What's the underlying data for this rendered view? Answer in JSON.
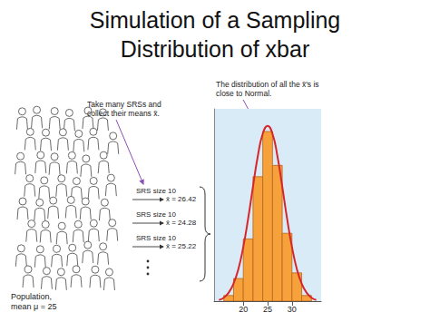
{
  "chart_data": {
    "type": "histogram",
    "title": "Simulation of a Sampling Distribution of xbar",
    "annotations": {
      "note": "Take many SRSs and collect their means x̄.",
      "curve_note": "The distribution of all the x̄'s is close to Normal.",
      "samples": [
        {
          "label": "SRS size 10",
          "mean": "x̄ = 26.42"
        },
        {
          "label": "SRS size 10",
          "mean": "x̄ = 24.28"
        },
        {
          "label": "SRS size 10",
          "mean": "x̄ = 25.22"
        }
      ],
      "population": "Population, mean μ = 25"
    },
    "bins": [
      16,
      18,
      20,
      22,
      24,
      26,
      28,
      30,
      32,
      34
    ],
    "counts": [
      1,
      4,
      11,
      22,
      30,
      24,
      12,
      5,
      1
    ],
    "color": "#f7a13a",
    "series": [
      {
        "type": "line",
        "color": "#d7262b",
        "x": [
          15,
          16,
          17,
          18,
          19,
          20,
          21,
          22,
          23,
          24,
          25,
          26,
          27,
          28,
          29,
          30,
          31,
          32,
          33,
          34,
          35
        ],
        "values": [
          0.2,
          0.6,
          1.5,
          3.1,
          5.7,
          9.6,
          14.6,
          20.3,
          25.7,
          29.6,
          31,
          29.6,
          25.7,
          20.3,
          14.6,
          9.6,
          5.7,
          3.1,
          1.5,
          0.6,
          0.2
        ]
      }
    ],
    "xlim": [
      14,
      36
    ],
    "xticks": [
      20,
      25,
      30
    ],
    "ylim": [
      0,
      34
    ],
    "tick_labels": "x",
    "grid": false
  }
}
